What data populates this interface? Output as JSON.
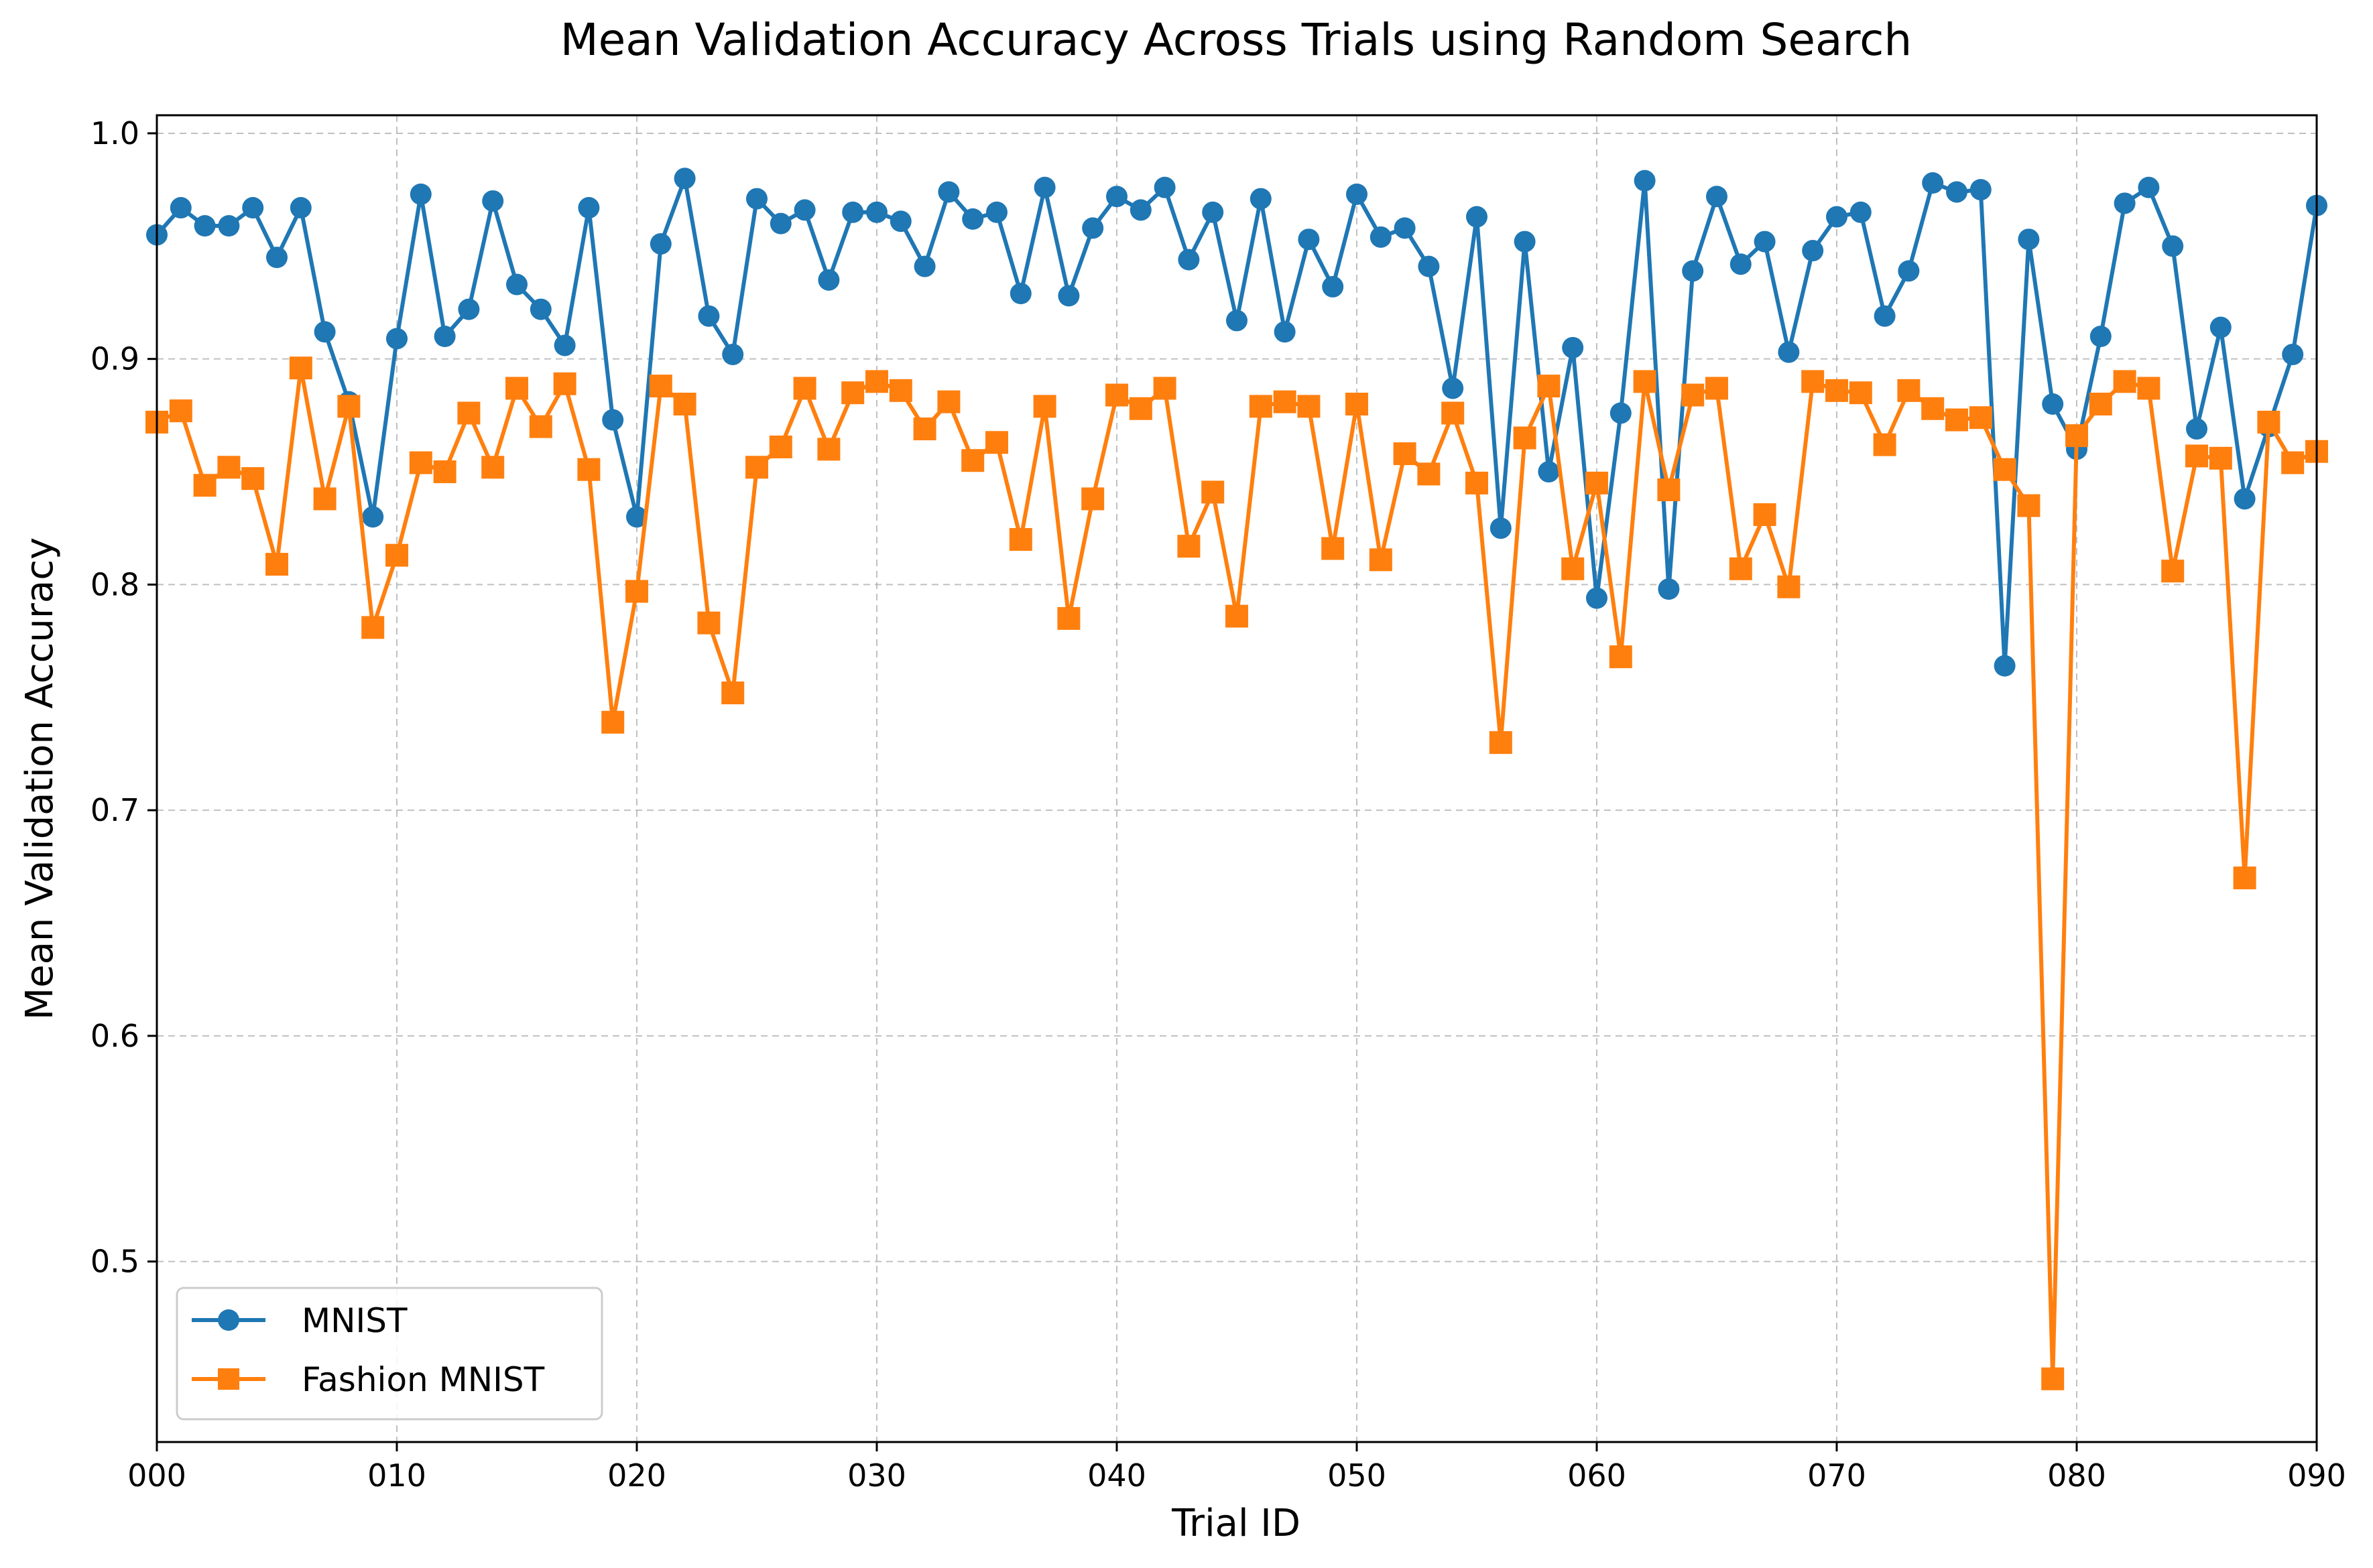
{
  "chart_data": {
    "type": "line",
    "title": "Mean Validation Accuracy Across Trials using Random Search",
    "xlabel": "Trial ID",
    "ylabel": "Mean Validation Accuracy",
    "xlim": [
      0,
      90
    ],
    "ylim": [
      0.42,
      1.008
    ],
    "x_ticks": [
      0,
      10,
      20,
      30,
      40,
      50,
      60,
      70,
      80,
      90
    ],
    "x_tick_labels": [
      "000",
      "010",
      "020",
      "030",
      "040",
      "050",
      "060",
      "070",
      "080",
      "090"
    ],
    "y_ticks": [
      0.5,
      0.6,
      0.7,
      0.8,
      0.9,
      1.0
    ],
    "y_tick_labels": [
      "0.5",
      "0.6",
      "0.7",
      "0.8",
      "0.9",
      "1.0"
    ],
    "grid": true,
    "legend_position": "lower-left",
    "x": [
      0,
      1,
      2,
      3,
      4,
      5,
      6,
      7,
      8,
      9,
      10,
      11,
      12,
      13,
      14,
      15,
      16,
      17,
      18,
      19,
      20,
      21,
      22,
      23,
      24,
      25,
      26,
      27,
      28,
      29,
      30,
      31,
      32,
      33,
      34,
      35,
      36,
      37,
      38,
      39,
      40,
      41,
      42,
      43,
      44,
      45,
      46,
      47,
      48,
      49,
      50,
      51,
      52,
      53,
      54,
      55,
      56,
      57,
      58,
      59,
      60,
      61,
      62,
      63,
      64,
      65,
      66,
      67,
      68,
      69,
      70,
      71,
      72,
      73,
      74,
      75,
      76,
      77,
      78,
      79,
      80,
      81,
      82,
      83,
      84,
      85,
      86,
      87,
      88,
      89,
      90
    ],
    "series": [
      {
        "name": "MNIST",
        "color": "#1f77b4",
        "marker": "circle",
        "values": [
          0.955,
          0.967,
          0.959,
          0.959,
          0.967,
          0.945,
          0.967,
          0.912,
          0.881,
          0.83,
          0.909,
          0.973,
          0.91,
          0.922,
          0.97,
          0.933,
          0.922,
          0.906,
          0.967,
          0.873,
          0.83,
          0.951,
          0.98,
          0.919,
          0.902,
          0.971,
          0.96,
          0.966,
          0.935,
          0.965,
          0.965,
          0.961,
          0.941,
          0.974,
          0.962,
          0.965,
          0.929,
          0.976,
          0.928,
          0.958,
          0.972,
          0.966,
          0.976,
          0.944,
          0.965,
          0.917,
          0.971,
          0.912,
          0.953,
          0.932,
          0.973,
          0.954,
          0.958,
          0.941,
          0.887,
          0.963,
          0.825,
          0.952,
          0.85,
          0.905,
          0.794,
          0.876,
          0.979,
          0.798,
          0.939,
          0.972,
          0.942,
          0.952,
          0.903,
          0.948,
          0.963,
          0.965,
          0.919,
          0.939,
          0.978,
          0.974,
          0.975,
          0.764,
          0.953,
          0.88,
          0.86,
          0.91,
          0.969,
          0.976,
          0.95,
          0.869,
          0.914,
          0.838,
          0.87,
          0.902,
          0.968
        ]
      },
      {
        "name": "Fashion MNIST",
        "color": "#ff7f0e",
        "marker": "square",
        "values": [
          0.872,
          0.877,
          0.844,
          0.852,
          0.847,
          0.809,
          0.896,
          0.838,
          0.879,
          0.781,
          0.813,
          0.854,
          0.85,
          0.876,
          0.852,
          0.887,
          0.87,
          0.889,
          0.851,
          0.739,
          0.797,
          0.888,
          0.88,
          0.783,
          0.752,
          0.852,
          0.861,
          0.887,
          0.86,
          0.885,
          0.89,
          0.886,
          0.869,
          0.881,
          0.855,
          0.863,
          0.82,
          0.879,
          0.785,
          0.838,
          0.884,
          0.878,
          0.887,
          0.817,
          0.841,
          0.786,
          0.879,
          0.881,
          0.879,
          0.816,
          0.88,
          0.811,
          0.858,
          0.849,
          0.876,
          0.845,
          0.73,
          0.865,
          0.888,
          0.807,
          0.845,
          0.768,
          0.89,
          0.842,
          0.884,
          0.887,
          0.807,
          0.831,
          0.799,
          0.89,
          0.886,
          0.885,
          0.862,
          0.886,
          0.878,
          0.873,
          0.874,
          0.851,
          0.835,
          0.448,
          0.866,
          0.88,
          0.89,
          0.887,
          0.806,
          0.857,
          0.856,
          0.67,
          0.872,
          0.854,
          0.859
        ]
      }
    ]
  }
}
